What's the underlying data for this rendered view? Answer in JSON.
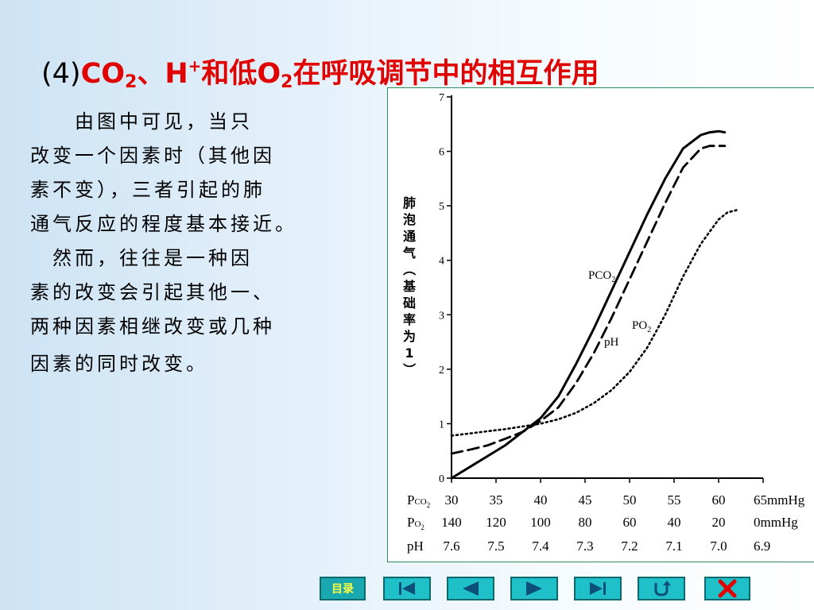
{
  "title": {
    "num": "(4)",
    "part1": "CO",
    "sub1": "2",
    "part2": "、H",
    "sup1": "+",
    "part3": "和低O",
    "sub2": "2",
    "part4": "在呼吸调节中的相互作用"
  },
  "body_lines": [
    "　　由图中可见，当只",
    "改变一个因素时（其他因",
    "素不变），三者引起的肺",
    "通气反应的程度基本接近。",
    "　然而，往往是一种因",
    "素的改变会引起其他一、",
    "两种因素相继改变或几种",
    "因素的同时改变。"
  ],
  "chart_data": {
    "type": "line",
    "ylabel": "肺泡通气（基础率为1）",
    "ylim": [
      0,
      7
    ],
    "yticks": [
      "0",
      "1",
      "2",
      "3",
      "4",
      "5",
      "6",
      "7"
    ],
    "x_axes": [
      {
        "label": "Pco2",
        "ticks": [
          "30",
          "35",
          "40",
          "45",
          "50",
          "55",
          "60",
          "65mmHg"
        ]
      },
      {
        "label": "Po2",
        "ticks": [
          "140",
          "120",
          "100",
          "80",
          "60",
          "40",
          "20",
          "0mmHg"
        ]
      },
      {
        "label": "pH",
        "ticks": [
          "7.6",
          "7.5",
          "7.4",
          "7.3",
          "7.2",
          "7.1",
          "7.0",
          "6.9"
        ]
      }
    ],
    "x_positions": [
      30,
      35,
      40,
      45,
      50,
      55,
      60,
      65
    ],
    "series": [
      {
        "name": "PCO2",
        "style": "solid",
        "x": [
          30,
          32,
          34,
          36,
          38,
          40,
          42,
          44,
          46,
          48,
          50,
          52,
          54,
          56,
          58,
          59,
          60,
          60.7
        ],
        "y": [
          0.0,
          0.2,
          0.4,
          0.6,
          0.85,
          1.1,
          1.5,
          2.1,
          2.75,
          3.45,
          4.15,
          4.85,
          5.5,
          6.05,
          6.3,
          6.35,
          6.37,
          6.35
        ]
      },
      {
        "name": "pH",
        "style": "dashed",
        "x": [
          30,
          32,
          34,
          36,
          38,
          40,
          42,
          44,
          46,
          48,
          50,
          52,
          54,
          56,
          58,
          59,
          60,
          60.7
        ],
        "y": [
          0.45,
          0.52,
          0.6,
          0.72,
          0.85,
          1.05,
          1.3,
          1.75,
          2.3,
          2.95,
          3.65,
          4.35,
          5.05,
          5.7,
          6.05,
          6.1,
          6.1,
          6.1
        ]
      },
      {
        "name": "PO2",
        "style": "dotted",
        "x": [
          30,
          32,
          34,
          36,
          38,
          40,
          42,
          44,
          46,
          48,
          50,
          52,
          54,
          56,
          58,
          60,
          61,
          62
        ],
        "y": [
          0.78,
          0.82,
          0.86,
          0.9,
          0.95,
          1.0,
          1.08,
          1.2,
          1.38,
          1.62,
          1.95,
          2.4,
          3.0,
          3.7,
          4.3,
          4.75,
          4.88,
          4.92
        ]
      }
    ],
    "series_labels": [
      {
        "text": "PCO",
        "sub": "2",
        "series": "PCO2"
      },
      {
        "text": "pH",
        "sub": "",
        "series": "pH"
      },
      {
        "text": "PO",
        "sub": "2",
        "series": "PO2"
      }
    ],
    "colors": {
      "line": "#000000"
    }
  },
  "nav": {
    "menu_label": "目录",
    "buttons": [
      {
        "name": "first-page-button",
        "icon": "skip-to-start-icon"
      },
      {
        "name": "prev-page-button",
        "icon": "triangle-left-icon"
      },
      {
        "name": "next-page-button",
        "icon": "triangle-right-icon"
      },
      {
        "name": "last-page-button",
        "icon": "skip-to-end-icon"
      },
      {
        "name": "return-button",
        "icon": "u-turn-icon"
      },
      {
        "name": "close-button",
        "icon": "red-x-icon"
      }
    ],
    "colors": {
      "button_bg": "#20c0c8",
      "border": "#0a6a70",
      "icon": "#0a5078",
      "close": "#e00000",
      "menu_text": "#ffff40"
    }
  }
}
